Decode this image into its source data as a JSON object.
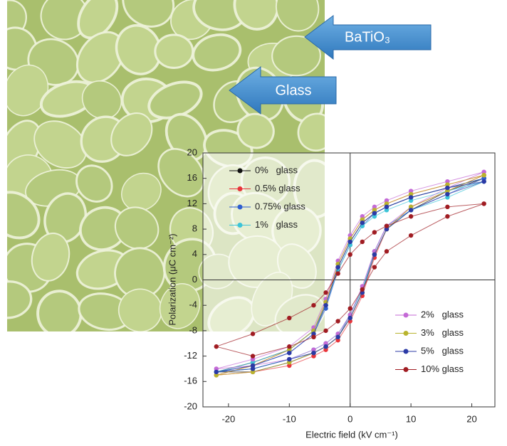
{
  "chart_data": {
    "type": "line",
    "xlabel": "Electric field (kV cm⁻¹)",
    "ylabel": "Polarization (μC cm⁻²)",
    "annotations": [
      "BaTiO₃",
      "Glass"
    ],
    "xlim": [
      -24.2,
      23.8
    ],
    "ylim": [
      -20,
      20
    ],
    "xticks": [
      -20,
      -10,
      0,
      10,
      20
    ],
    "yticks": [
      -20,
      -16,
      -12,
      -8,
      -4,
      0,
      4,
      8,
      12,
      16,
      20
    ],
    "zero_lines": true,
    "x": [
      22,
      16,
      10,
      6,
      4,
      2,
      0,
      -2,
      -4,
      -6,
      -10,
      -16,
      -22,
      -16,
      -10,
      -6,
      -4,
      -2,
      0,
      2,
      4,
      6,
      10,
      16,
      22
    ],
    "series": [
      {
        "name": "0%   glass",
        "color": "#111111",
        "legend": "upper left",
        "values": [
          16,
          14.5,
          13,
          11.5,
          10.5,
          9,
          6,
          2,
          -4,
          -8,
          -11,
          -13,
          -14.5,
          -14.5,
          -13,
          -11.5,
          -10.5,
          -9,
          -6,
          -2,
          4,
          8,
          11,
          14,
          16
        ]
      },
      {
        "name": "0.5% glass",
        "color": "#e8343a",
        "legend": "upper left",
        "values": [
          16.5,
          15,
          13.5,
          12,
          11,
          9.5,
          6.5,
          2.5,
          -3.5,
          -8,
          -11,
          -13.5,
          -15,
          -14.5,
          -13.5,
          -12,
          -11,
          -9.5,
          -6.5,
          -2.5,
          3.5,
          8,
          11.5,
          14,
          16.5
        ]
      },
      {
        "name": "0.75% glass",
        "color": "#2f5fd0",
        "legend": "upper left",
        "values": [
          16,
          14.5,
          13,
          11.5,
          10.5,
          8.5,
          5.5,
          1.5,
          -4.5,
          -8.5,
          -11.5,
          -13.5,
          -14.5,
          -14,
          -12.5,
          -11.5,
          -10.5,
          -9,
          -5.5,
          -1.5,
          4.5,
          8.5,
          11,
          13.5,
          16
        ]
      },
      {
        "name": "1%   glass",
        "color": "#3cc4d8",
        "legend": "upper left",
        "values": [
          15.5,
          14,
          12.5,
          11,
          10,
          8.5,
          5.5,
          1.5,
          -4,
          -8,
          -11,
          -13,
          -14.5,
          -14,
          -12.5,
          -11,
          -10,
          -8.5,
          -5.5,
          -1.5,
          4,
          8,
          11,
          13,
          15.5
        ]
      },
      {
        "name": "2%   glass",
        "color": "#c46ad6",
        "legend": "lower right",
        "values": [
          17,
          15.5,
          14,
          12.5,
          11.5,
          10,
          7,
          3,
          -3,
          -7.5,
          -10.5,
          -12.5,
          -14,
          -13.5,
          -12.5,
          -11,
          -10,
          -8.5,
          -5.5,
          -1,
          4.5,
          8.5,
          11.5,
          14.5,
          17
        ]
      },
      {
        "name": "3%   glass",
        "color": "#b9b42e",
        "legend": "lower right",
        "values": [
          16.5,
          15,
          13.5,
          12,
          11,
          9.5,
          6.5,
          2.5,
          -3.5,
          -8,
          -11,
          -13.5,
          -15,
          -14.5,
          -13,
          -11.5,
          -10.5,
          -9,
          -6,
          -2,
          4,
          8,
          11.5,
          14,
          16.5
        ]
      },
      {
        "name": "5%   glass",
        "color": "#2b3aa6",
        "legend": "lower right",
        "values": [
          15.5,
          14.5,
          13,
          11.5,
          10.5,
          9,
          6,
          2,
          -4,
          -8.5,
          -11.5,
          -13.5,
          -14.5,
          -14,
          -12.5,
          -11.5,
          -10.5,
          -9,
          -6,
          -2,
          4,
          8,
          11,
          13.5,
          15.5
        ]
      },
      {
        "name": "10% glass",
        "color": "#a01c22",
        "legend": "lower right",
        "values": [
          12,
          11.5,
          10,
          8.5,
          7.5,
          6,
          4,
          1,
          -2,
          -4,
          -6,
          -8.5,
          -10.5,
          -12,
          -10.5,
          -9,
          -8,
          -6.5,
          -4.5,
          -1.5,
          2,
          4.5,
          7,
          10,
          12
        ]
      }
    ]
  }
}
